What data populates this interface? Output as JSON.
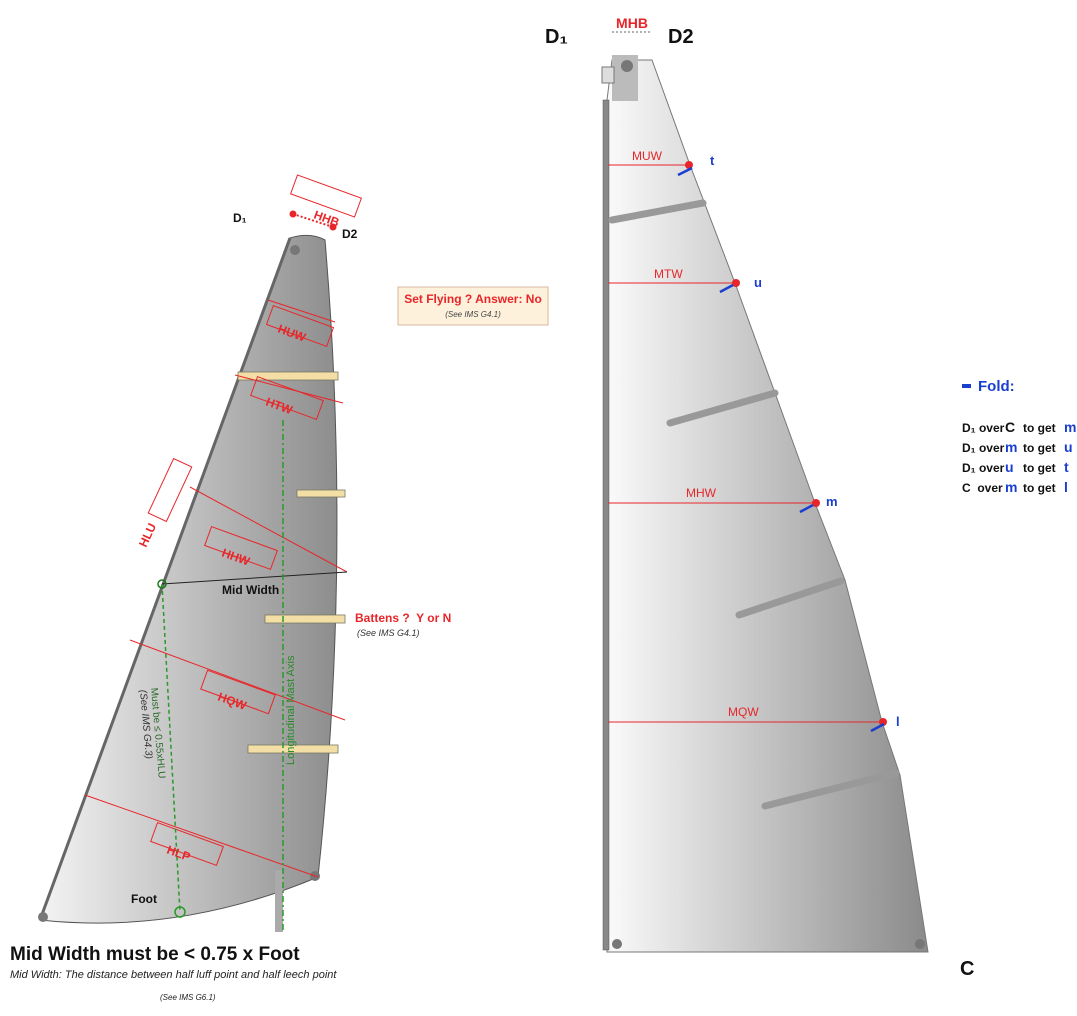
{
  "left": {
    "d1": "D₁",
    "d2": "D2",
    "hhb": "HHB",
    "huw": "HUW",
    "htw": "HTW",
    "hlu": "HLU",
    "hhw": "HHW",
    "mid_width": "Mid Width",
    "hqw": "HQW",
    "hlp": "HLP",
    "foot": "Foot",
    "mast_axis": "Longitudinal Mast Axis",
    "must_be": "Must be ≤ 0.55xHLU",
    "must_ref": "(See IMS G4.3)"
  },
  "set_flying": {
    "question": "Set Flying ?  Answer: No",
    "ref": "(See IMS G4.1)"
  },
  "battens": {
    "question": "Battens ?  Y or N",
    "ref": "(See IMS G4.1)"
  },
  "rule": {
    "title": "Mid Width must be < 0.75 x Foot",
    "definition": "Mid Width: The distance between half luff point and half leech point",
    "ref": "(See IMS G6.1)"
  },
  "right": {
    "d1": "D₁",
    "d2": "D2",
    "mhb": "MHB",
    "muw": "MUW",
    "t": "t",
    "mtw": "MTW",
    "u": "u",
    "mhw": "MHW",
    "m": "m",
    "mqw": "MQW",
    "l": "l",
    "c": "C"
  },
  "fold": {
    "title": "Fold:",
    "steps": [
      [
        "D₁ over",
        "C",
        "to get",
        "m"
      ],
      [
        "D₁ over",
        "m",
        "to get",
        "u"
      ],
      [
        "D₁ over",
        "u",
        "to get",
        "t"
      ],
      [
        "C  over",
        "m",
        "to get",
        "l"
      ]
    ]
  }
}
